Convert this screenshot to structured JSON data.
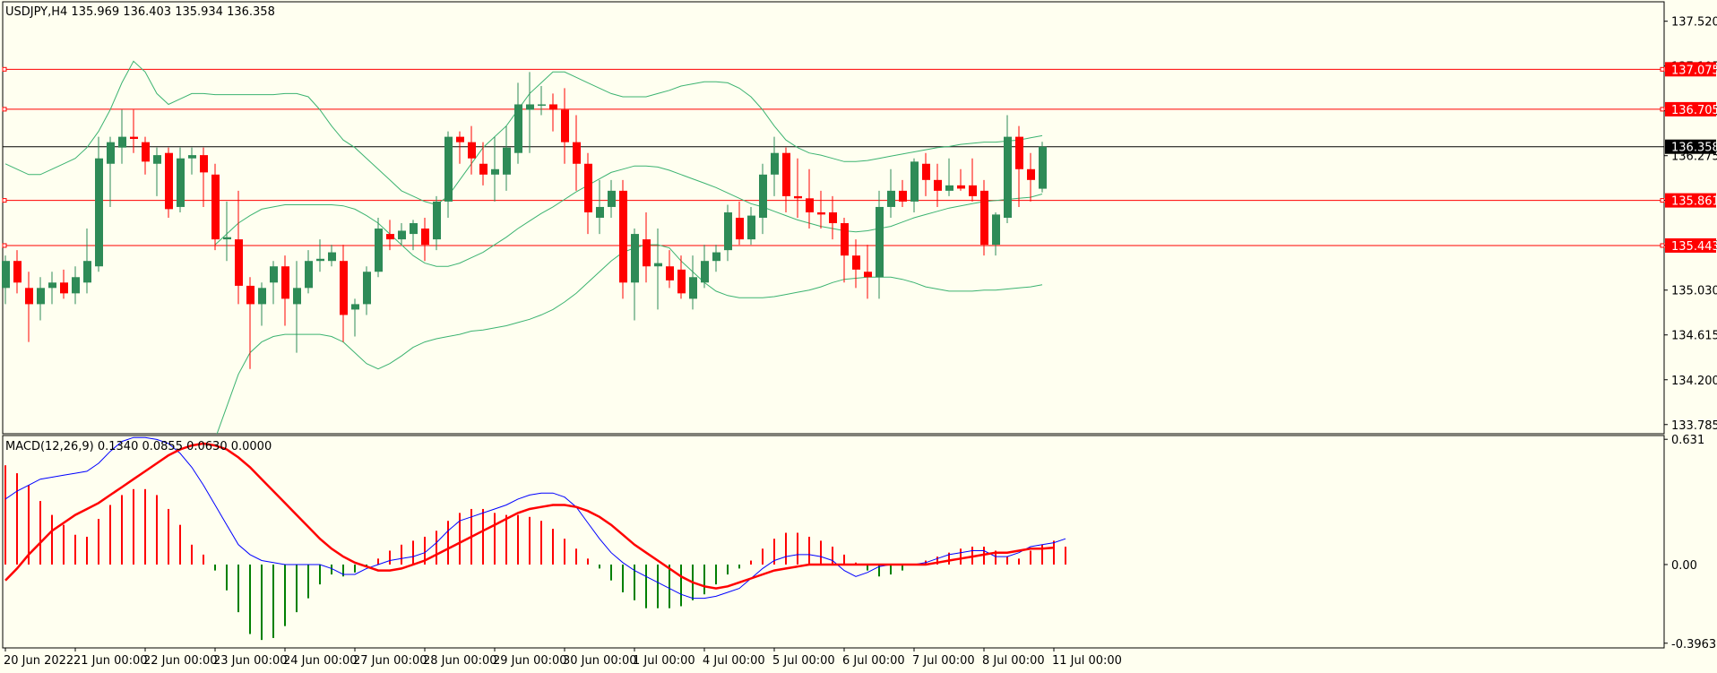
{
  "chart_data": [
    {
      "type": "candlestick",
      "symbol": "USDJPY",
      "timeframe": "H4",
      "header": "USDJPY,H4  135.969 136.403 135.934 136.358",
      "ohlc_current": {
        "open": 135.969,
        "high": 136.403,
        "low": 135.934,
        "close": 136.358
      },
      "ylim": [
        133.7,
        137.7
      ],
      "y_ticks": [
        "137.520",
        "137.105",
        "136.690",
        "136.275",
        "135.861",
        "135.445",
        "135.030",
        "134.615",
        "134.200",
        "133.785"
      ],
      "current_price_label": "136.358",
      "current_price": 136.358,
      "horizontal_levels": [
        {
          "value": 137.075,
          "label": "137.075"
        },
        {
          "value": 136.705,
          "label": "136.705"
        },
        {
          "value": 135.861,
          "label": "135.861"
        },
        {
          "value": 135.443,
          "label": "135.443"
        }
      ],
      "x_labels": [
        "20 Jun 2022",
        "21 Jun 00:00",
        "22 Jun 00:00",
        "23 Jun 00:00",
        "24 Jun 00:00",
        "27 Jun 00:00",
        "28 Jun 00:00",
        "29 Jun 00:00",
        "30 Jun 00:00",
        "1 Jul 00:00",
        "4 Jul 00:00",
        "5 Jul 00:00",
        "6 Jul 00:00",
        "7 Jul 00:00",
        "8 Jul 00:00",
        "11 Jul 00:00"
      ],
      "bars_start_index": [
        0,
        6,
        12,
        18,
        24,
        30,
        36,
        42,
        48,
        54,
        60,
        66,
        72,
        78,
        84,
        90
      ],
      "candles": [
        [
          135.05,
          135.35,
          134.9,
          135.3
        ],
        [
          135.3,
          135.4,
          135.0,
          135.1
        ],
        [
          135.05,
          135.2,
          134.55,
          134.9
        ],
        [
          134.9,
          135.15,
          134.75,
          135.05
        ],
        [
          135.05,
          135.2,
          134.9,
          135.1
        ],
        [
          135.1,
          135.22,
          134.95,
          135.0
        ],
        [
          135.0,
          135.25,
          134.9,
          135.15
        ],
        [
          135.1,
          135.6,
          135.0,
          135.3
        ],
        [
          135.25,
          136.45,
          135.2,
          136.25
        ],
        [
          136.2,
          136.45,
          135.8,
          136.4
        ],
        [
          136.35,
          136.7,
          136.2,
          136.45
        ],
        [
          136.45,
          136.7,
          136.3,
          136.43
        ],
        [
          136.4,
          136.45,
          136.1,
          136.22
        ],
        [
          136.2,
          136.35,
          135.9,
          136.28
        ],
        [
          136.3,
          136.35,
          135.7,
          135.78
        ],
        [
          135.8,
          136.35,
          135.75,
          136.25
        ],
        [
          136.25,
          136.35,
          136.1,
          136.28
        ],
        [
          136.28,
          136.35,
          135.8,
          136.12
        ],
        [
          136.1,
          136.2,
          135.4,
          135.5
        ],
        [
          135.5,
          135.85,
          135.3,
          135.52
        ],
        [
          135.5,
          135.95,
          134.9,
          135.07
        ],
        [
          135.07,
          135.15,
          134.3,
          134.9
        ],
        [
          134.9,
          135.1,
          134.7,
          135.05
        ],
        [
          135.1,
          135.3,
          134.9,
          135.25
        ],
        [
          135.25,
          135.35,
          134.7,
          134.95
        ],
        [
          134.9,
          135.3,
          134.45,
          135.05
        ],
        [
          135.05,
          135.4,
          135.0,
          135.3
        ],
        [
          135.3,
          135.5,
          135.2,
          135.32
        ],
        [
          135.3,
          135.45,
          135.25,
          135.38
        ],
        [
          135.3,
          135.45,
          134.55,
          134.8
        ],
        [
          134.85,
          134.95,
          134.6,
          134.9
        ],
        [
          134.9,
          135.25,
          134.8,
          135.2
        ],
        [
          135.2,
          135.7,
          135.15,
          135.6
        ],
        [
          135.55,
          135.68,
          135.4,
          135.5
        ],
        [
          135.5,
          135.65,
          135.45,
          135.58
        ],
        [
          135.55,
          135.68,
          135.4,
          135.65
        ],
        [
          135.6,
          135.7,
          135.3,
          135.45
        ],
        [
          135.5,
          135.9,
          135.4,
          135.85
        ],
        [
          135.85,
          136.5,
          135.7,
          136.45
        ],
        [
          136.45,
          136.5,
          136.2,
          136.4
        ],
        [
          136.4,
          136.55,
          136.1,
          136.25
        ],
        [
          136.2,
          136.4,
          136.0,
          136.1
        ],
        [
          136.1,
          136.45,
          135.85,
          136.15
        ],
        [
          136.1,
          136.55,
          135.95,
          136.35
        ],
        [
          136.3,
          136.95,
          136.2,
          136.75
        ],
        [
          136.7,
          137.05,
          136.3,
          136.75
        ],
        [
          136.75,
          136.92,
          136.65,
          136.75
        ],
        [
          136.75,
          136.85,
          136.5,
          136.7
        ],
        [
          136.7,
          136.9,
          136.2,
          136.4
        ],
        [
          136.4,
          136.65,
          135.95,
          136.2
        ],
        [
          136.2,
          136.3,
          135.55,
          135.75
        ],
        [
          135.7,
          136.05,
          135.55,
          135.8
        ],
        [
          135.8,
          136.05,
          135.7,
          135.95
        ],
        [
          135.95,
          136.05,
          134.95,
          135.1
        ],
        [
          135.1,
          135.6,
          134.75,
          135.55
        ],
        [
          135.5,
          135.75,
          135.1,
          135.25
        ],
        [
          135.25,
          135.6,
          134.85,
          135.28
        ],
        [
          135.25,
          135.4,
          135.05,
          135.12
        ],
        [
          135.22,
          135.35,
          134.95,
          135.0
        ],
        [
          134.95,
          135.35,
          134.85,
          135.15
        ],
        [
          135.1,
          135.45,
          135.05,
          135.3
        ],
        [
          135.3,
          135.45,
          135.2,
          135.38
        ],
        [
          135.4,
          135.82,
          135.3,
          135.75
        ],
        [
          135.7,
          135.85,
          135.45,
          135.5
        ],
        [
          135.5,
          135.8,
          135.45,
          135.72
        ],
        [
          135.7,
          136.2,
          135.55,
          136.1
        ],
        [
          136.1,
          136.45,
          135.9,
          136.3
        ],
        [
          136.3,
          136.35,
          135.75,
          135.9
        ],
        [
          135.9,
          136.25,
          135.7,
          135.88
        ],
        [
          135.88,
          136.15,
          135.6,
          135.75
        ],
        [
          135.75,
          135.95,
          135.6,
          135.73
        ],
        [
          135.75,
          135.9,
          135.5,
          135.65
        ],
        [
          135.65,
          135.7,
          135.1,
          135.35
        ],
        [
          135.35,
          135.5,
          135.05,
          135.22
        ],
        [
          135.2,
          135.45,
          134.95,
          135.15
        ],
        [
          135.15,
          135.95,
          134.95,
          135.8
        ],
        [
          135.8,
          136.15,
          135.7,
          135.95
        ],
        [
          135.95,
          136.05,
          135.8,
          135.85
        ],
        [
          135.85,
          136.25,
          135.75,
          136.22
        ],
        [
          136.2,
          136.3,
          135.9,
          136.05
        ],
        [
          136.05,
          136.2,
          135.8,
          135.95
        ],
        [
          135.95,
          136.25,
          135.9,
          136.0
        ],
        [
          136.0,
          136.15,
          135.95,
          135.97
        ],
        [
          136.0,
          136.25,
          135.85,
          135.9
        ],
        [
          135.95,
          136.05,
          135.35,
          135.45
        ],
        [
          135.45,
          135.75,
          135.35,
          135.73
        ],
        [
          135.7,
          136.65,
          135.65,
          136.45
        ],
        [
          136.45,
          136.55,
          135.8,
          136.15
        ],
        [
          136.15,
          136.3,
          135.85,
          136.05
        ],
        [
          135.969,
          136.403,
          135.934,
          136.358
        ]
      ],
      "bollinger_upper": [
        136.2,
        136.15,
        136.1,
        136.1,
        136.15,
        136.2,
        136.25,
        136.35,
        136.5,
        136.7,
        136.95,
        137.15,
        137.05,
        136.85,
        136.75,
        136.8,
        136.85,
        136.85,
        136.84,
        136.84,
        136.84,
        136.84,
        136.84,
        136.84,
        136.85,
        136.85,
        136.82,
        136.7,
        136.55,
        136.42,
        136.35,
        136.25,
        136.15,
        136.05,
        135.95,
        135.9,
        135.85,
        135.82,
        135.9,
        136.05,
        136.2,
        136.35,
        136.45,
        136.55,
        136.7,
        136.85,
        136.95,
        137.05,
        137.05,
        137.0,
        136.95,
        136.9,
        136.85,
        136.82,
        136.82,
        136.82,
        136.85,
        136.88,
        136.92,
        136.94,
        136.96,
        136.96,
        136.95,
        136.9,
        136.82,
        136.7,
        136.55,
        136.42,
        136.35,
        136.3,
        136.28,
        136.25,
        136.22,
        136.22,
        136.23,
        136.25,
        136.27,
        136.29,
        136.31,
        136.33,
        136.35,
        136.36,
        136.38,
        136.39,
        136.4,
        136.4,
        136.41,
        136.42,
        136.44,
        136.46
      ],
      "bollinger_middle": [
        null,
        null,
        null,
        null,
        null,
        null,
        null,
        null,
        null,
        null,
        null,
        null,
        null,
        null,
        null,
        null,
        null,
        null,
        135.45,
        135.55,
        135.65,
        135.72,
        135.78,
        135.8,
        135.82,
        135.82,
        135.82,
        135.82,
        135.82,
        135.81,
        135.78,
        135.72,
        135.65,
        135.55,
        135.45,
        135.35,
        135.28,
        135.25,
        135.25,
        135.28,
        135.33,
        135.38,
        135.45,
        135.52,
        135.6,
        135.67,
        135.74,
        135.8,
        135.87,
        135.94,
        136.0,
        136.06,
        136.12,
        136.15,
        136.18,
        136.18,
        136.17,
        136.14,
        136.1,
        136.06,
        136.02,
        135.98,
        135.93,
        135.88,
        135.83,
        135.8,
        135.76,
        135.72,
        135.68,
        135.65,
        135.62,
        135.6,
        135.58,
        135.57,
        135.58,
        135.6,
        135.62,
        135.66,
        135.7,
        135.73,
        135.76,
        135.79,
        135.81,
        135.83,
        135.85,
        135.86,
        135.87,
        135.88,
        135.89,
        135.92
      ],
      "bollinger_lower": [
        null,
        null,
        null,
        null,
        null,
        null,
        null,
        null,
        null,
        null,
        null,
        null,
        null,
        null,
        null,
        null,
        null,
        null,
        133.65,
        133.95,
        134.25,
        134.45,
        134.55,
        134.6,
        134.62,
        134.62,
        134.62,
        134.62,
        134.6,
        134.55,
        134.45,
        134.35,
        134.3,
        134.35,
        134.42,
        134.5,
        134.55,
        134.58,
        134.6,
        134.62,
        134.65,
        134.66,
        134.68,
        134.7,
        134.73,
        134.76,
        134.8,
        134.85,
        134.92,
        135.0,
        135.1,
        135.2,
        135.3,
        135.38,
        135.42,
        135.45,
        135.45,
        135.42,
        135.3,
        135.2,
        135.1,
        135.02,
        134.98,
        134.96,
        134.96,
        134.96,
        134.97,
        134.99,
        135.01,
        135.03,
        135.06,
        135.1,
        135.13,
        135.14,
        135.15,
        135.15,
        135.15,
        135.13,
        135.1,
        135.06,
        135.04,
        135.02,
        135.02,
        135.02,
        135.03,
        135.03,
        135.04,
        135.05,
        135.06,
        135.08
      ]
    },
    {
      "type": "macd",
      "label": "MACD(12,26,9) 0.1340 0.0855 0.0630 0.0000",
      "ylim": [
        -0.42,
        0.65
      ],
      "y_ticks": [
        "0.631",
        "0.00",
        "-0.3963"
      ],
      "histogram": [
        0.5,
        0.46,
        0.4,
        0.32,
        0.25,
        0.2,
        0.15,
        0.14,
        0.23,
        0.3,
        0.35,
        0.38,
        0.38,
        0.35,
        0.28,
        0.2,
        0.1,
        0.05,
        -0.03,
        -0.13,
        -0.24,
        -0.35,
        -0.38,
        -0.37,
        -0.31,
        -0.24,
        -0.17,
        -0.1,
        -0.05,
        -0.06,
        -0.04,
        -0.01,
        0.03,
        0.07,
        0.1,
        0.12,
        0.14,
        0.17,
        0.22,
        0.26,
        0.28,
        0.28,
        0.26,
        0.25,
        0.25,
        0.24,
        0.22,
        0.18,
        0.13,
        0.08,
        0.03,
        -0.02,
        -0.08,
        -0.14,
        -0.18,
        -0.22,
        -0.22,
        -0.22,
        -0.21,
        -0.18,
        -0.15,
        -0.1,
        -0.05,
        -0.02,
        0.02,
        0.08,
        0.13,
        0.16,
        0.16,
        0.14,
        0.12,
        0.09,
        0.05,
        0.01,
        -0.03,
        -0.06,
        -0.05,
        -0.03,
        0.0,
        0.02,
        0.04,
        0.06,
        0.08,
        0.09,
        0.09,
        0.07,
        0.04,
        0.03,
        0.07,
        0.1,
        0.12,
        0.09
      ],
      "macd_line": [
        0.33,
        0.37,
        0.4,
        0.43,
        0.44,
        0.45,
        0.46,
        0.47,
        0.51,
        0.57,
        0.62,
        0.64,
        0.64,
        0.63,
        0.61,
        0.56,
        0.49,
        0.4,
        0.3,
        0.2,
        0.1,
        0.05,
        0.02,
        0.01,
        0.0,
        0.0,
        0.0,
        0.0,
        -0.02,
        -0.05,
        -0.05,
        -0.02,
        0.0,
        0.02,
        0.03,
        0.04,
        0.06,
        0.11,
        0.17,
        0.22,
        0.24,
        0.26,
        0.28,
        0.3,
        0.33,
        0.35,
        0.36,
        0.36,
        0.34,
        0.29,
        0.21,
        0.13,
        0.06,
        0.01,
        -0.03,
        -0.06,
        -0.09,
        -0.12,
        -0.15,
        -0.17,
        -0.17,
        -0.16,
        -0.14,
        -0.12,
        -0.07,
        -0.02,
        0.02,
        0.04,
        0.05,
        0.05,
        0.04,
        0.02,
        -0.03,
        -0.06,
        -0.04,
        -0.01,
        0.0,
        0.0,
        0.0,
        0.01,
        0.03,
        0.05,
        0.06,
        0.07,
        0.07,
        0.04,
        0.04,
        0.06,
        0.09,
        0.1,
        0.11,
        0.13
      ],
      "signal_line": [
        -0.08,
        -0.02,
        0.05,
        0.11,
        0.17,
        0.21,
        0.25,
        0.28,
        0.31,
        0.35,
        0.39,
        0.43,
        0.47,
        0.51,
        0.55,
        0.58,
        0.6,
        0.61,
        0.6,
        0.58,
        0.54,
        0.49,
        0.43,
        0.37,
        0.31,
        0.25,
        0.19,
        0.13,
        0.08,
        0.04,
        0.01,
        -0.01,
        -0.03,
        -0.03,
        -0.02,
        0.0,
        0.02,
        0.05,
        0.08,
        0.11,
        0.14,
        0.17,
        0.2,
        0.23,
        0.26,
        0.28,
        0.29,
        0.3,
        0.3,
        0.29,
        0.27,
        0.24,
        0.2,
        0.15,
        0.1,
        0.06,
        0.02,
        -0.02,
        -0.06,
        -0.09,
        -0.11,
        -0.12,
        -0.11,
        -0.09,
        -0.07,
        -0.05,
        -0.03,
        -0.02,
        -0.01,
        0.0,
        0.0,
        0.0,
        0.0,
        0.0,
        0.0,
        0.0,
        0.0,
        0.0,
        0.0,
        0.0,
        0.01,
        0.02,
        0.03,
        0.04,
        0.05,
        0.06,
        0.06,
        0.07,
        0.08,
        0.08,
        0.085
      ]
    }
  ],
  "colors": {
    "background": "#fffff0",
    "bull_candle": "#2e8b57",
    "bear_candle": "#ff0000",
    "bollinger": "#3cb371",
    "level_line": "#ff0000",
    "price_line": "#000000",
    "macd_line": "#0000ff",
    "signal_line": "#ff0000",
    "hist_pos": "#ff0000",
    "hist_neg": "#008000"
  }
}
